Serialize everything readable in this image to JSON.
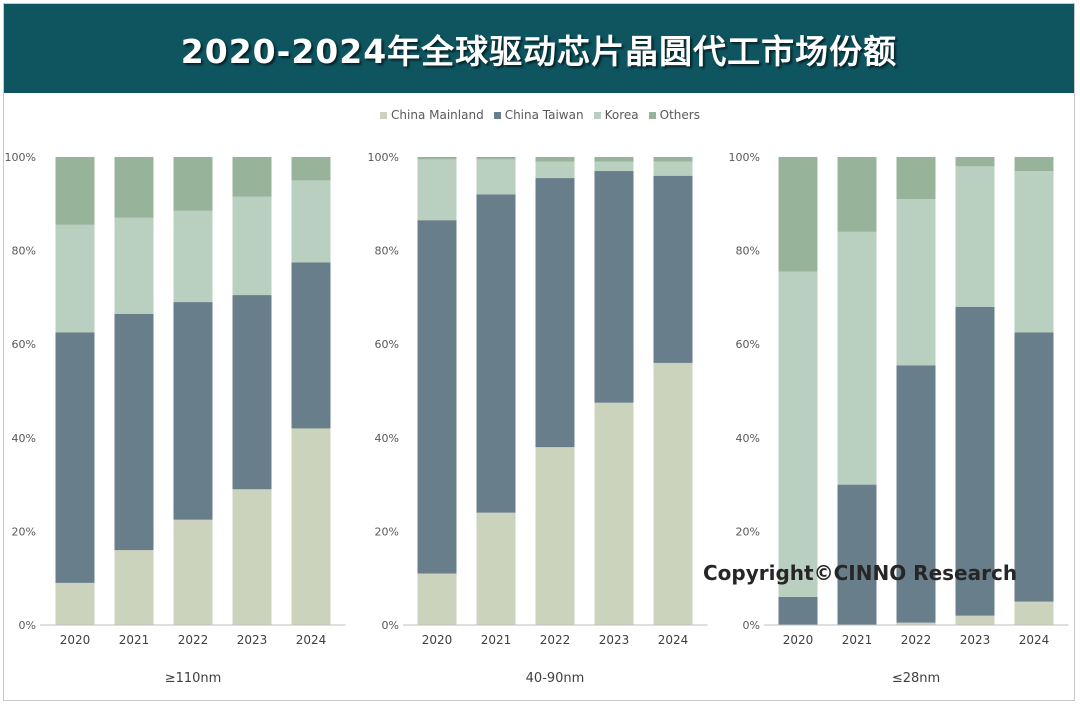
{
  "header": {
    "title": "2020-2024年全球驱动芯片晶圆代工市场份额"
  },
  "legend": [
    {
      "name": "China Mainland",
      "color": "#ccd3bd"
    },
    {
      "name": "China Taiwan",
      "color": "#687e8a"
    },
    {
      "name": "Korea",
      "color": "#b9cfbf"
    },
    {
      "name": "Others",
      "color": "#97b49b"
    }
  ],
  "watermark": {
    "text": "Copyright©CINNO Research"
  },
  "chart_data": [
    {
      "type": "bar",
      "stacked": true,
      "title": "≥110nm",
      "categories": [
        "2020",
        "2021",
        "2022",
        "2023",
        "2024"
      ],
      "y_ticks": [
        "0%",
        "20%",
        "40%",
        "60%",
        "80%",
        "100%"
      ],
      "ylim": [
        0,
        100
      ],
      "series": [
        {
          "name": "China Mainland",
          "values": [
            9,
            16,
            22.5,
            29,
            42
          ]
        },
        {
          "name": "China Taiwan",
          "values": [
            53.5,
            50.5,
            46.5,
            41.5,
            35.5
          ]
        },
        {
          "name": "Korea",
          "values": [
            23,
            20.5,
            19.5,
            21,
            17.5
          ]
        },
        {
          "name": "Others",
          "values": [
            14.5,
            13,
            11.5,
            8.5,
            5
          ]
        }
      ]
    },
    {
      "type": "bar",
      "stacked": true,
      "title": "40-90nm",
      "categories": [
        "2020",
        "2021",
        "2022",
        "2023",
        "2024"
      ],
      "y_ticks": [
        "0%",
        "20%",
        "40%",
        "60%",
        "80%",
        "100%"
      ],
      "ylim": [
        0,
        100
      ],
      "series": [
        {
          "name": "China Mainland",
          "values": [
            11,
            24,
            38,
            47.5,
            56
          ]
        },
        {
          "name": "China Taiwan",
          "values": [
            75.5,
            68,
            57.5,
            49.5,
            40
          ]
        },
        {
          "name": "Korea",
          "values": [
            13,
            7.5,
            3.5,
            2,
            3
          ]
        },
        {
          "name": "Others",
          "values": [
            0.5,
            0.5,
            1,
            1,
            1
          ]
        }
      ]
    },
    {
      "type": "bar",
      "stacked": true,
      "title": "≤28nm",
      "categories": [
        "2020",
        "2021",
        "2022",
        "2023",
        "2024"
      ],
      "y_ticks": [
        "0%",
        "20%",
        "40%",
        "60%",
        "80%",
        "100%"
      ],
      "ylim": [
        0,
        100
      ],
      "series": [
        {
          "name": "China Mainland",
          "values": [
            0,
            0,
            0.5,
            2,
            5
          ]
        },
        {
          "name": "China Taiwan",
          "values": [
            6,
            30,
            55,
            66,
            57.5
          ]
        },
        {
          "name": "Korea",
          "values": [
            69.5,
            54,
            35.5,
            30,
            34.5
          ]
        },
        {
          "name": "Others",
          "values": [
            24.5,
            16,
            9,
            2,
            3
          ]
        }
      ]
    }
  ]
}
